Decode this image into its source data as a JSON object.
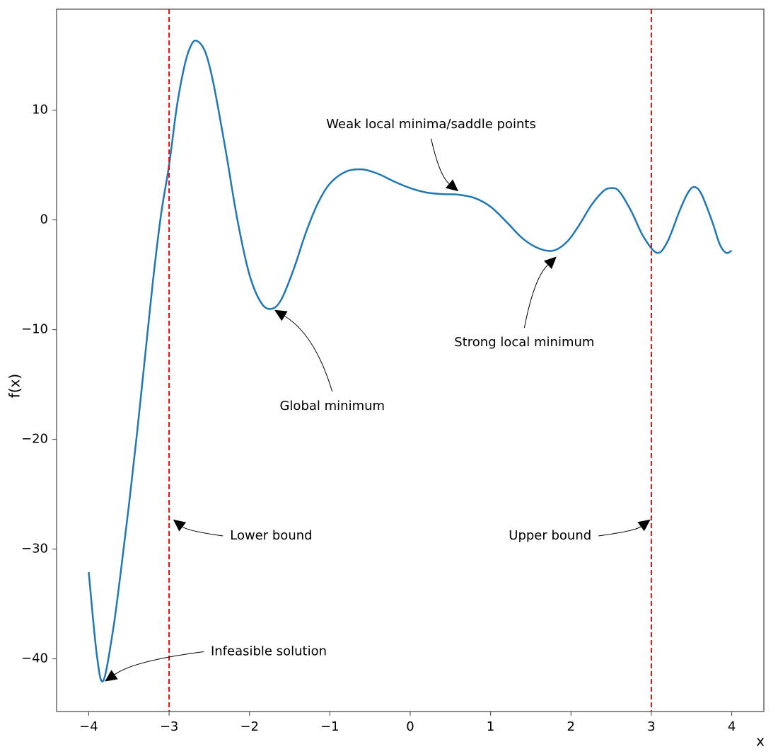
{
  "chart_data": {
    "type": "line",
    "xlabel": "x",
    "ylabel": "f(x)",
    "x": [
      -4,
      -3.9,
      -3.82,
      -3.7,
      -3.6,
      -3.5,
      -3.4,
      -3.3,
      -3.2,
      -3.1,
      -3.0,
      -2.9,
      -2.8,
      -2.72,
      -2.65,
      -2.55,
      -2.45,
      -2.3,
      -2.15,
      -2.0,
      -1.85,
      -1.72,
      -1.6,
      -1.45,
      -1.3,
      -1.15,
      -1.0,
      -0.8,
      -0.6,
      -0.4,
      -0.2,
      0,
      0.2,
      0.4,
      0.6,
      0.8,
      1.0,
      1.2,
      1.4,
      1.6,
      1.78,
      1.95,
      2.1,
      2.25,
      2.4,
      2.5,
      2.6,
      2.75,
      2.9,
      3.07,
      3.2,
      3.35,
      3.45,
      3.53,
      3.62,
      3.75,
      3.85,
      3.93,
      4.0
    ],
    "series": [
      {
        "color": "#1f77b4",
        "values": [
          -32.1,
          -39.6,
          -42,
          -37.5,
          -32,
          -26,
          -19.5,
          -12.5,
          -5.5,
          0.5,
          5,
          10.5,
          14.3,
          16,
          16.3,
          15.3,
          12.5,
          6.5,
          0,
          -5,
          -7.6,
          -8.1,
          -7.2,
          -4.5,
          -1.2,
          1.5,
          3.3,
          4.4,
          4.6,
          4.2,
          3.5,
          2.9,
          2.5,
          2.35,
          2.3,
          2.0,
          1.2,
          -0.2,
          -1.7,
          -2.6,
          -2.8,
          -2.0,
          -0.5,
          1.3,
          2.6,
          2.9,
          2.6,
          0.8,
          -1.5,
          -3.0,
          -2.0,
          0.8,
          2.4,
          3.0,
          2.4,
          0,
          -2.2,
          -3.0,
          -2.8
        ]
      }
    ],
    "vlines": [
      -3,
      3
    ],
    "vline_color": "#ff0000",
    "xlim": [
      -4.4,
      4.4
    ],
    "ylim": [
      -44.8,
      19.2
    ],
    "xticks": [
      {
        "value": -4,
        "label": "−4"
      },
      {
        "value": -3,
        "label": "−3"
      },
      {
        "value": -2,
        "label": "−2"
      },
      {
        "value": -1,
        "label": "−1"
      },
      0,
      1,
      2,
      3,
      4
    ],
    "yticks": [
      {
        "value": -40,
        "label": "−40"
      },
      {
        "value": -30,
        "label": "−30"
      },
      {
        "value": -20,
        "label": "−20"
      },
      {
        "value": -10,
        "label": "−10"
      },
      0,
      10
    ],
    "annotations": [
      {
        "text": "Weak local minima/saddle points",
        "xy": [
          0.6,
          2.6
        ],
        "xytext": [
          0.26,
          8.7
        ]
      },
      {
        "text": "Strong local minimum",
        "xy": [
          1.82,
          -3.35
        ],
        "xytext": [
          1.42,
          -11.2
        ]
      },
      {
        "text": "Global minimum",
        "xy": [
          -1.69,
          -8.2
        ],
        "xytext": [
          -0.97,
          -17.0
        ]
      },
      {
        "text": "Lower bound",
        "xy": [
          -2.95,
          -27.3
        ],
        "xytext": [
          -1.73,
          -28.8
        ]
      },
      {
        "text": "Upper bound",
        "xy": [
          2.99,
          -27.3
        ],
        "xytext": [
          1.74,
          -28.8
        ]
      },
      {
        "text": "Infeasible solution",
        "xy": [
          -3.8,
          -42.06
        ],
        "xytext": [
          -1.76,
          -39.35
        ]
      }
    ]
  }
}
